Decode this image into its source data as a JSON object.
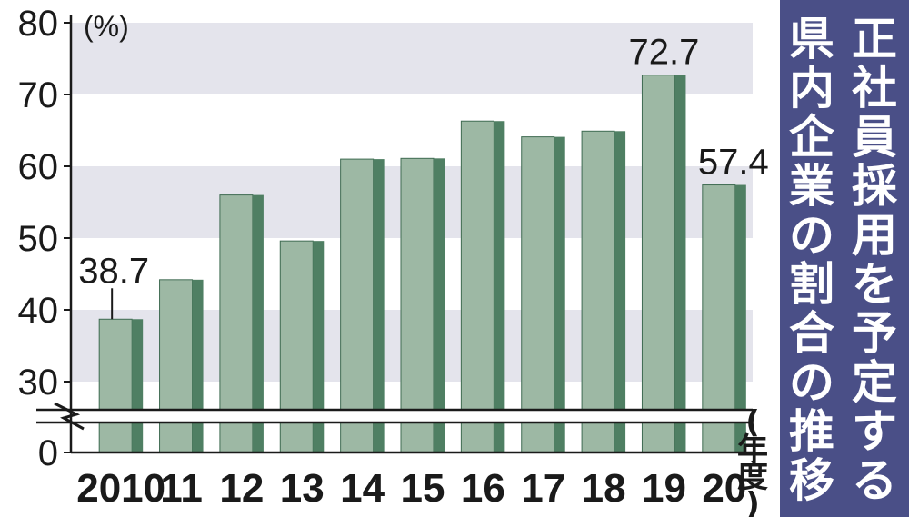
{
  "chart_data": {
    "type": "bar",
    "title_lines": [
      "正社員採用を予定する",
      "県内企業の割合の推移"
    ],
    "ylabel": "(%)",
    "xlabel": "(年度)",
    "categories": [
      "2010",
      "11",
      "12",
      "13",
      "14",
      "15",
      "16",
      "17",
      "18",
      "19",
      "20"
    ],
    "values": [
      38.7,
      44.2,
      56.0,
      49.6,
      61.0,
      61.1,
      66.3,
      64.1,
      64.9,
      72.7,
      57.4
    ],
    "data_labels": [
      {
        "category": "2010",
        "text": "38.7"
      },
      {
        "category": "19",
        "text": "72.7"
      },
      {
        "category": "20",
        "text": "57.4"
      }
    ],
    "y_ticks": [
      "0",
      "30",
      "40",
      "50",
      "60",
      "70",
      "80"
    ],
    "ylim": [
      25,
      80
    ],
    "axis_break": true,
    "grid": "alternating horizontal bands",
    "colors": {
      "bar_face": "#9db8a4",
      "bar_side": "#4f7f63",
      "band": "#e4e4ec",
      "title_panel": "#4a4f87"
    }
  }
}
